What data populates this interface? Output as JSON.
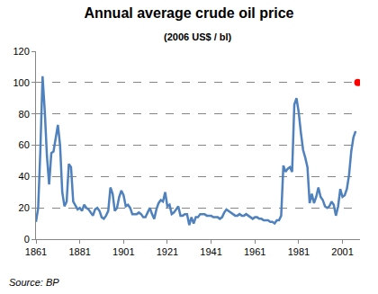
{
  "chart_data": {
    "type": "line",
    "title": "Annual average crude oil price",
    "subtitle": "(2006 US$ / bl)",
    "source": "Source: BP",
    "xlim": [
      1861,
      2009
    ],
    "xticks": [
      1861,
      1881,
      1901,
      1921,
      1941,
      1961,
      1981,
      2001
    ],
    "ylim": [
      0,
      120
    ],
    "yticks": [
      0,
      20,
      40,
      60,
      80,
      100,
      120
    ],
    "grid": true,
    "series": [
      {
        "color": "#4f81bd",
        "marker": "none",
        "line_style": "solid",
        "x": [
          1861,
          1862,
          1863,
          1864,
          1865,
          1866,
          1867,
          1868,
          1869,
          1870,
          1871,
          1872,
          1873,
          1874,
          1875,
          1876,
          1877,
          1878,
          1879,
          1880,
          1881,
          1882,
          1883,
          1884,
          1885,
          1886,
          1887,
          1888,
          1889,
          1890,
          1891,
          1892,
          1893,
          1894,
          1895,
          1896,
          1897,
          1898,
          1899,
          1900,
          1901,
          1902,
          1903,
          1904,
          1905,
          1906,
          1907,
          1908,
          1909,
          1910,
          1911,
          1912,
          1913,
          1914,
          1915,
          1916,
          1917,
          1918,
          1919,
          1920,
          1921,
          1922,
          1923,
          1924,
          1925,
          1926,
          1927,
          1928,
          1929,
          1930,
          1931,
          1932,
          1933,
          1934,
          1935,
          1936,
          1937,
          1938,
          1939,
          1940,
          1941,
          1942,
          1943,
          1944,
          1945,
          1946,
          1947,
          1948,
          1949,
          1950,
          1951,
          1952,
          1953,
          1954,
          1955,
          1956,
          1957,
          1958,
          1959,
          1960,
          1961,
          1962,
          1963,
          1964,
          1965,
          1966,
          1967,
          1968,
          1969,
          1970,
          1971,
          1972,
          1973,
          1974,
          1975,
          1976,
          1977,
          1978,
          1979,
          1980,
          1981,
          1982,
          1983,
          1984,
          1985,
          1986,
          1987,
          1988,
          1989,
          1990,
          1991,
          1992,
          1993,
          1994,
          1995,
          1996,
          1997,
          1998,
          1999,
          2000,
          2001,
          2002,
          2003,
          2004,
          2005,
          2006,
          2007
        ],
        "values": [
          11,
          20,
          57,
          104,
          82,
          53,
          35,
          55,
          56,
          64,
          73,
          60,
          30,
          21,
          24,
          48,
          46,
          24,
          21,
          19,
          20,
          18,
          22,
          20,
          19,
          17,
          15,
          19,
          20,
          18,
          14,
          13,
          15,
          18,
          33,
          29,
          18,
          20,
          27,
          31,
          28,
          21,
          22,
          20,
          16,
          16,
          16,
          17,
          16,
          14,
          14,
          17,
          20,
          16,
          13,
          19,
          23,
          25,
          24,
          30,
          21,
          22,
          16,
          17,
          19,
          21,
          15,
          15,
          16,
          16,
          9,
          14,
          10,
          14,
          14,
          16,
          16,
          16,
          15,
          15,
          15,
          14,
          14,
          14,
          13,
          14,
          17,
          19,
          18,
          17,
          16,
          15,
          15,
          16,
          15,
          15,
          16,
          15,
          14,
          13,
          14,
          14,
          13,
          13,
          12,
          12,
          12,
          11,
          11,
          10,
          12,
          12,
          15,
          47,
          43,
          45,
          46,
          43,
          86,
          90,
          81,
          68,
          57,
          52,
          46,
          23,
          29,
          23,
          27,
          33,
          27,
          25,
          21,
          20,
          21,
          24,
          22,
          15,
          21,
          32,
          27,
          28,
          32,
          41,
          56,
          65,
          69
        ]
      },
      {
        "color": "#ff0000",
        "marker": "circle",
        "type": "scatter",
        "x": [
          2008
        ],
        "values": [
          100
        ]
      }
    ]
  }
}
